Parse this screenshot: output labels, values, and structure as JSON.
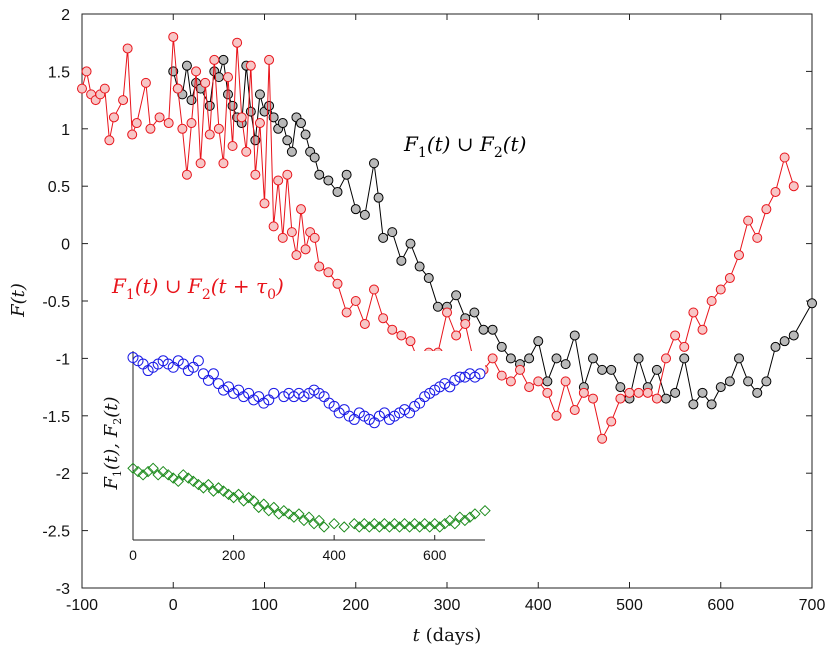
{
  "chart_data": [
    {
      "type": "scatter",
      "xlabel": "t (days)",
      "ylabel": "F(t)",
      "xlim": [
        -100,
        700
      ],
      "ylim": [
        -3,
        2
      ],
      "xticks": [
        "-100",
        "0",
        "100",
        "200",
        "300",
        "400",
        "500",
        "600",
        "700"
      ],
      "yticks": [
        "-3",
        "-2.5",
        "-2",
        "-1.5",
        "-1",
        "-0.5",
        "0",
        "0.5",
        "1",
        "1.5",
        "2"
      ],
      "grid": false,
      "annotations": [
        {
          "text": "F1(t) ∪ F2(t)",
          "color": "#000000"
        },
        {
          "text": "F1(t) ∪ F2(t + τ0)",
          "color": "#e8141b"
        }
      ],
      "series": [
        {
          "color": "#000000",
          "marker_fill": "#b9b9b9",
          "x": [
            0,
            5,
            10,
            15,
            20,
            25,
            30,
            40,
            45,
            50,
            55,
            60,
            65,
            70,
            75,
            80,
            85,
            90,
            95,
            100,
            105,
            110,
            115,
            120,
            125,
            130,
            135,
            140,
            145,
            150,
            155,
            160,
            170,
            180,
            190,
            200,
            210,
            220,
            225,
            230,
            240,
            250,
            260,
            270,
            280,
            290,
            300,
            310,
            320,
            330,
            340,
            350,
            360,
            370,
            380,
            390,
            400,
            410,
            420,
            430,
            440,
            450,
            460,
            470,
            480,
            490,
            500,
            510,
            520,
            530,
            540,
            550,
            560,
            570,
            580,
            590,
            600,
            610,
            620,
            630,
            640,
            650,
            660,
            670,
            680,
            700
          ],
          "y": [
            1.5,
            1.35,
            1.3,
            1.55,
            1.25,
            1.4,
            1.35,
            1.2,
            1.5,
            1.45,
            1.6,
            1.3,
            1.2,
            1.1,
            1.05,
            1.55,
            1.15,
            0.9,
            1.3,
            1.15,
            1.2,
            1.1,
            1.0,
            1.05,
            0.9,
            0.8,
            1.1,
            1.05,
            0.95,
            0.8,
            0.75,
            0.6,
            0.55,
            0.45,
            0.6,
            0.3,
            0.25,
            0.7,
            0.4,
            0.05,
            0.1,
            -0.15,
            0.0,
            -0.2,
            -0.3,
            -0.55,
            -0.55,
            -0.45,
            -0.65,
            -0.6,
            -0.75,
            -0.75,
            -0.9,
            -1.0,
            -1.05,
            -1.0,
            -0.85,
            -1.2,
            -1.0,
            -1.05,
            -0.8,
            -1.25,
            -1.0,
            -1.1,
            -1.1,
            -1.25,
            -1.35,
            -1.0,
            -1.25,
            -1.1,
            -1.35,
            -1.3,
            -1.0,
            -1.4,
            -1.3,
            -1.4,
            -1.25,
            -1.2,
            -1.0,
            -1.2,
            -1.3,
            -1.2,
            -0.9,
            -0.85,
            -0.8,
            -0.52
          ]
        },
        {
          "color": "#e8141b",
          "marker_fill": "#f7c6c6",
          "x": [
            -100,
            -95,
            -90,
            -85,
            -80,
            -75,
            -70,
            -65,
            -55,
            -50,
            -45,
            -40,
            -30,
            -25,
            -15,
            -5,
            0,
            5,
            10,
            15,
            20,
            25,
            30,
            35,
            40,
            45,
            50,
            55,
            60,
            65,
            70,
            75,
            80,
            85,
            90,
            95,
            100,
            105,
            110,
            115,
            120,
            125,
            130,
            135,
            140,
            145,
            150,
            155,
            160,
            170,
            180,
            190,
            200,
            210,
            220,
            230,
            240,
            250,
            260,
            270,
            280,
            290,
            300,
            310,
            320,
            330,
            340,
            350,
            360,
            370,
            380,
            390,
            400,
            410,
            420,
            430,
            440,
            450,
            460,
            470,
            480,
            490,
            500,
            510,
            520,
            530,
            540,
            550,
            560,
            570,
            580,
            590,
            600,
            610,
            620,
            630,
            640,
            650,
            660,
            670,
            680
          ],
          "y": [
            1.35,
            1.5,
            1.3,
            1.25,
            1.3,
            1.35,
            0.9,
            1.1,
            1.25,
            1.7,
            0.95,
            1.05,
            1.4,
            1.0,
            1.1,
            1.05,
            1.8,
            1.35,
            1.0,
            0.6,
            1.05,
            1.5,
            0.7,
            1.4,
            0.95,
            1.6,
            1.0,
            0.7,
            1.45,
            0.85,
            1.75,
            1.1,
            0.8,
            1.55,
            0.6,
            1.05,
            0.35,
            1.6,
            0.15,
            0.55,
            0.05,
            0.6,
            0.1,
            -0.1,
            0.3,
            -0.05,
            0.1,
            0.05,
            -0.2,
            -0.25,
            -0.35,
            -0.6,
            -0.5,
            -0.7,
            -0.4,
            -0.65,
            -0.75,
            -0.8,
            -0.85,
            -1.05,
            -0.95,
            -0.95,
            -0.6,
            -0.8,
            -0.7,
            -1.05,
            -1.1,
            -1.0,
            -1.15,
            -1.2,
            -1.1,
            -1.25,
            -1.2,
            -1.3,
            -1.5,
            -1.2,
            -1.45,
            -1.3,
            -1.35,
            -1.7,
            -1.55,
            -1.35,
            -1.3,
            -1.3,
            -1.3,
            -1.35,
            -1.0,
            -0.8,
            -0.9,
            -0.6,
            -0.75,
            -0.5,
            -0.4,
            -0.3,
            -0.1,
            0.2,
            0.05,
            0.3,
            0.45,
            0.75,
            0.5
          ]
        }
      ]
    },
    {
      "type": "scatter",
      "xlabel": "",
      "ylabel": "F1(t), F2(t)",
      "xlim": [
        0,
        700
      ],
      "xticks": [
        "0",
        "200",
        "400",
        "600"
      ],
      "yticks": [],
      "grid": false,
      "series": [
        {
          "color": "#1a1ae6",
          "marker": "circle",
          "x": [
            0,
            10,
            20,
            30,
            40,
            50,
            60,
            70,
            80,
            90,
            100,
            110,
            120,
            130,
            140,
            150,
            160,
            170,
            180,
            190,
            200,
            210,
            220,
            230,
            240,
            250,
            260,
            270,
            280,
            300,
            310,
            320,
            330,
            340,
            350,
            360,
            370,
            380,
            390,
            400,
            410,
            420,
            430,
            440,
            450,
            460,
            470,
            480,
            490,
            500,
            510,
            520,
            530,
            540,
            550,
            560,
            570,
            580,
            590,
            600,
            610,
            620,
            630,
            640,
            650,
            660,
            670,
            680,
            690
          ],
          "y": [
            1.0,
            1.05,
            1.1,
            1.2,
            1.15,
            1.1,
            1.05,
            1.1,
            1.15,
            1.05,
            1.1,
            1.2,
            1.15,
            1.05,
            1.25,
            1.35,
            1.25,
            1.4,
            1.5,
            1.45,
            1.55,
            1.5,
            1.6,
            1.55,
            1.65,
            1.6,
            1.7,
            1.65,
            1.55,
            1.6,
            1.55,
            1.6,
            1.55,
            1.6,
            1.55,
            1.5,
            1.55,
            1.6,
            1.7,
            1.75,
            1.85,
            1.8,
            1.9,
            1.95,
            1.85,
            1.9,
            1.95,
            2.0,
            1.9,
            1.85,
            1.95,
            1.9,
            1.85,
            1.8,
            1.85,
            1.75,
            1.7,
            1.6,
            1.55,
            1.5,
            1.45,
            1.4,
            1.45,
            1.35,
            1.3,
            1.3,
            1.25,
            1.3,
            1.25
          ]
        },
        {
          "color": "#1a8a1a",
          "marker": "diamond",
          "x": [
            0,
            10,
            20,
            30,
            40,
            50,
            60,
            70,
            80,
            90,
            100,
            110,
            120,
            130,
            140,
            150,
            160,
            170,
            180,
            190,
            200,
            210,
            220,
            230,
            240,
            250,
            260,
            270,
            280,
            290,
            300,
            310,
            320,
            330,
            340,
            350,
            360,
            370,
            380,
            400,
            420,
            440,
            450,
            460,
            470,
            480,
            490,
            500,
            510,
            520,
            530,
            540,
            550,
            560,
            570,
            580,
            590,
            600,
            610,
            620,
            630,
            640,
            650,
            660,
            670,
            680,
            700
          ],
          "y": [
            2.7,
            2.75,
            2.8,
            2.75,
            2.7,
            2.8,
            2.75,
            2.8,
            2.85,
            2.9,
            2.8,
            2.85,
            2.9,
            2.95,
            3.0,
            2.95,
            3.05,
            3.0,
            3.05,
            3.1,
            3.15,
            3.1,
            3.2,
            3.15,
            3.2,
            3.3,
            3.25,
            3.35,
            3.3,
            3.4,
            3.35,
            3.4,
            3.45,
            3.4,
            3.5,
            3.45,
            3.55,
            3.5,
            3.6,
            3.55,
            3.6,
            3.55,
            3.6,
            3.55,
            3.6,
            3.55,
            3.6,
            3.55,
            3.6,
            3.55,
            3.6,
            3.55,
            3.6,
            3.55,
            3.6,
            3.55,
            3.6,
            3.55,
            3.6,
            3.55,
            3.5,
            3.55,
            3.45,
            3.5,
            3.45,
            3.4,
            3.35
          ]
        }
      ]
    }
  ]
}
